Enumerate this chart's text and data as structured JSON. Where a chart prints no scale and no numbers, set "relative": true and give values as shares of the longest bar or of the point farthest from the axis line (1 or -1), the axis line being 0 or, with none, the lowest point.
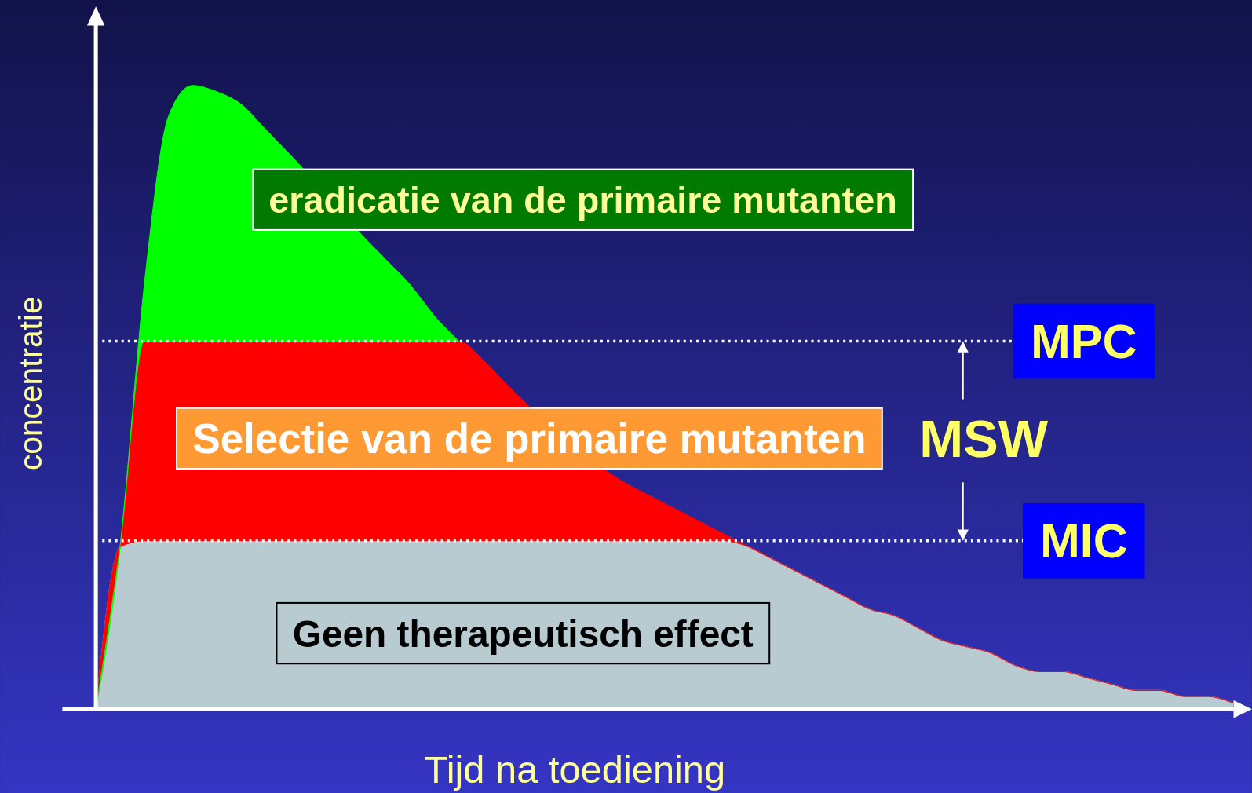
{
  "chart_data": {
    "type": "area",
    "stacked": true,
    "relative": true,
    "xlabel": "Tijd na toediening",
    "ylabel": "concentratie",
    "categories": [
      null,
      null,
      null,
      null,
      null,
      null,
      null,
      null,
      null,
      null,
      null,
      null,
      null,
      null,
      null,
      null,
      null,
      null,
      null,
      null,
      null,
      null,
      null,
      null,
      null,
      null,
      null,
      null,
      null,
      null,
      null,
      null,
      null,
      null,
      null,
      null,
      null,
      null,
      null,
      null,
      null,
      null,
      null,
      null,
      null,
      null,
      null,
      null
    ],
    "series": [
      {
        "color": "#b8cbd0",
        "values": [
          0,
          0.26,
          0.27,
          0.27,
          0.27,
          0.27,
          0.27,
          0.27,
          0.27,
          0.27,
          0.27,
          0.27,
          0.27,
          0.27,
          0.27,
          0.27,
          0.27,
          0.27,
          0.27,
          0.27,
          0.27,
          0.27,
          0.27,
          0.27,
          0.27,
          0.27,
          0.27,
          0.26,
          0.24,
          0.22,
          0.2,
          0.18,
          0.16,
          0.15,
          0.13,
          0.11,
          0.1,
          0.09,
          0.07,
          0.06,
          0.06,
          0.05,
          0.04,
          0.03,
          0.03,
          0.02,
          0.02,
          0.01
        ]
      },
      {
        "color": "#ff0000",
        "values": [
          0,
          0,
          0.32,
          0.32,
          0.32,
          0.32,
          0.32,
          0.32,
          0.32,
          0.32,
          0.32,
          0.32,
          0.32,
          0.32,
          0.32,
          0.32,
          0.29,
          0.25,
          null,
          null,
          null,
          null,
          0.09,
          0.07,
          0.05,
          0.03,
          0.01,
          0,
          0,
          0,
          0,
          0,
          0,
          0,
          0,
          0,
          0,
          0,
          0,
          0,
          0,
          0,
          0,
          0,
          0,
          0,
          0,
          0
        ]
      },
      {
        "color": "#00ff00",
        "values": [
          0,
          0,
          0.09,
          0.36,
          0.41,
          0.4,
          0.38,
          0.34,
          0.3,
          null,
          null,
          0.17,
          0.13,
          0.09,
          0.04,
          0,
          null,
          null,
          null,
          null,
          null,
          null,
          null,
          null,
          null,
          null,
          null,
          null,
          null,
          null,
          null,
          null,
          null,
          null,
          null,
          null,
          null,
          null,
          null,
          null,
          null,
          null,
          null,
          null,
          null,
          null,
          null,
          null
        ]
      }
    ],
    "ref_lines": [
      {
        "axis": "y",
        "value": 0.59,
        "label": "MPC",
        "color": "#ffffff",
        "line_style": "dotted"
      },
      {
        "axis": "y",
        "value": 0.27,
        "label": "MIC",
        "color": "#ffffff",
        "line_style": "dotted"
      }
    ],
    "annotations": [
      "eradicatie van de primaire mutanten",
      "Selectie van de primaire mutanten",
      "Geen therapeutisch effect",
      "MSW"
    ]
  }
}
